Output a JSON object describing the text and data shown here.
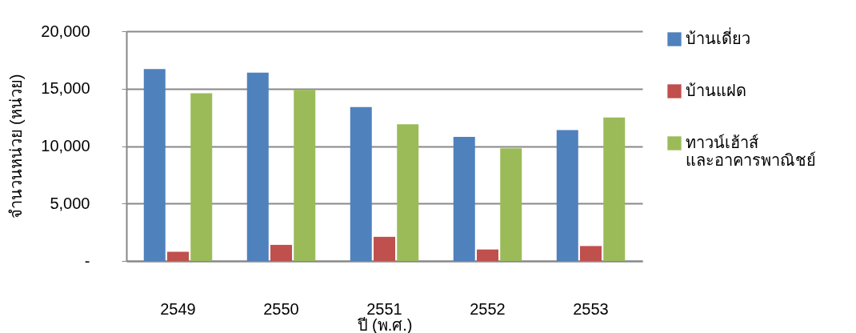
{
  "chart_data": {
    "type": "bar",
    "xlabel": "ปี (พ.ศ.)",
    "ylabel": "จำนวนหน่วย (หน่วย)",
    "categories": [
      "2549",
      "2550",
      "2551",
      "2552",
      "2553"
    ],
    "series": [
      {
        "name": "บ้านเดี่ยว",
        "color": "#4f81bd",
        "values": [
          16700,
          16400,
          13400,
          10800,
          11400
        ]
      },
      {
        "name": "บ้านแฝด",
        "color": "#c0504d",
        "values": [
          800,
          1400,
          2100,
          1000,
          1300
        ]
      },
      {
        "name": "ทาวน์เฮ้าส์ และอาคารพาณิชย์",
        "color": "#9bbb59",
        "values": [
          14600,
          14900,
          11900,
          9800,
          12500
        ]
      }
    ],
    "ylim": [
      0,
      20000
    ],
    "yticks": [
      {
        "value": 0,
        "label": "-"
      },
      {
        "value": 5000,
        "label": "5,000"
      },
      {
        "value": 10000,
        "label": "10,000"
      },
      {
        "value": 15000,
        "label": "15,000"
      },
      {
        "value": 20000,
        "label": "20,000"
      }
    ],
    "grid": "y",
    "legend": "right"
  }
}
